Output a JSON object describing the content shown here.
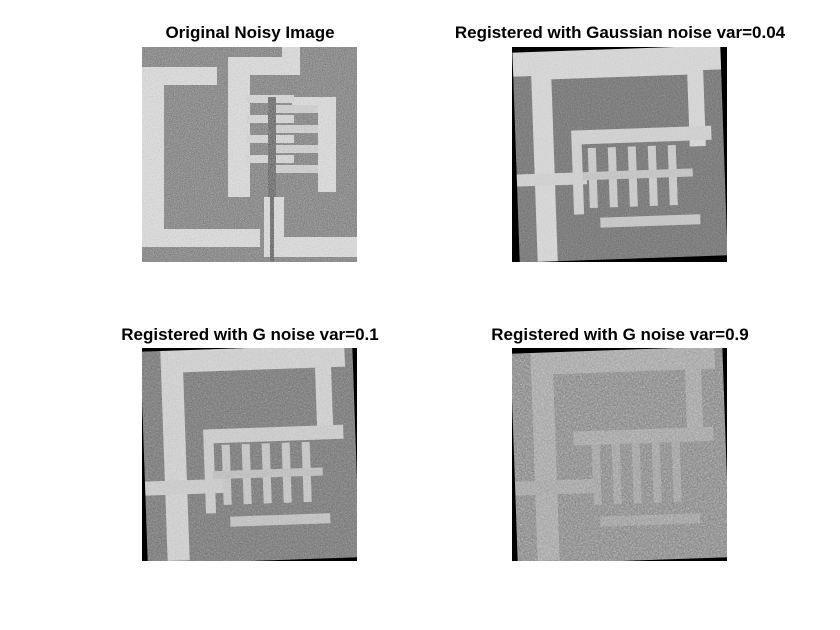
{
  "figure": {
    "panels": [
      {
        "title": "Original Noisy Image"
      },
      {
        "title": "Registered with Gaussian noise var=0.04"
      },
      {
        "title": "Registered with G noise var=0.1"
      },
      {
        "title": "Registered with G noise var=0.9"
      }
    ]
  }
}
